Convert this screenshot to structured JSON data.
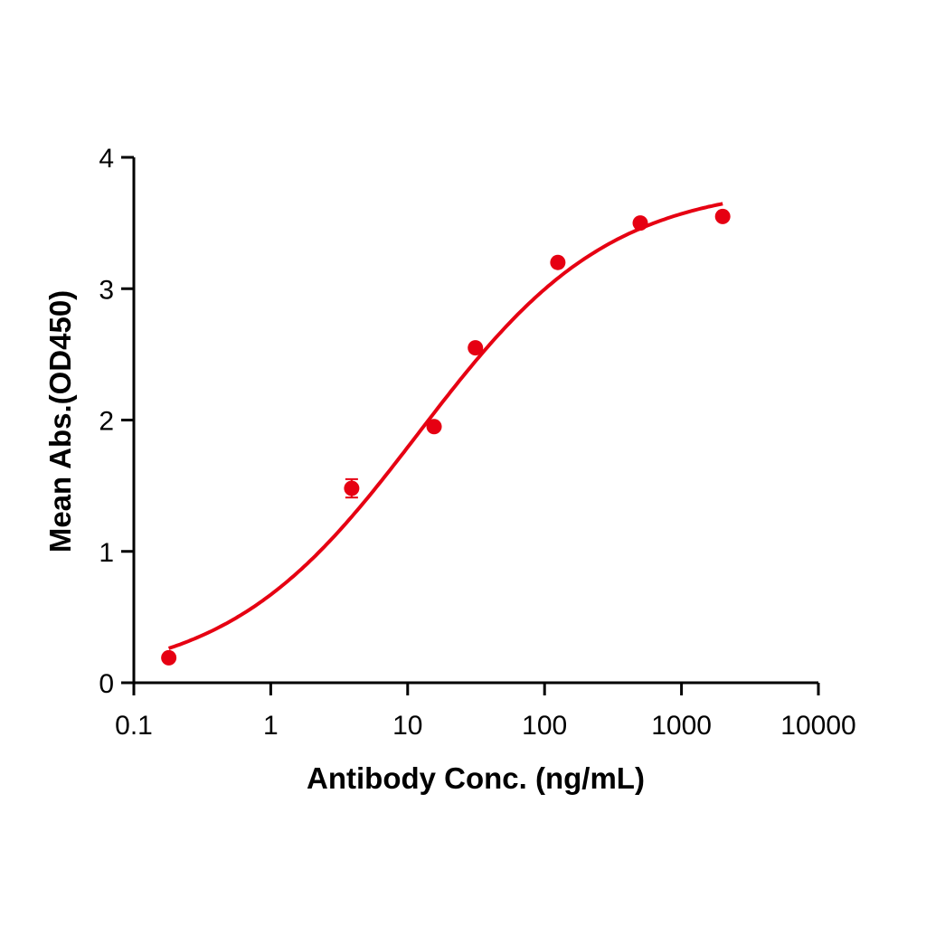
{
  "chart_data": {
    "type": "scatter",
    "title": "",
    "xlabel": "Antibody Conc. (ng/mL)",
    "ylabel": "Mean Abs.(OD450)",
    "xscale": "log",
    "xlim": [
      0.1,
      10000
    ],
    "ylim": [
      0,
      4
    ],
    "x_ticks": [
      "0.1",
      "1",
      "10",
      "100",
      "1000",
      "10000"
    ],
    "y_ticks": [
      "0",
      "1",
      "2",
      "3",
      "4"
    ],
    "grid": false,
    "legend": null,
    "color": "#e60012",
    "series": [
      {
        "name": "Mean Abs.",
        "x": [
          0.18,
          3.9,
          15.6,
          31.25,
          125,
          500,
          2000
        ],
        "y": [
          0.19,
          1.48,
          1.95,
          2.55,
          3.2,
          3.5,
          3.55
        ],
        "error": [
          0.0,
          0.07,
          0.0,
          0.0,
          0.0,
          0.0,
          0.0
        ]
      }
    ],
    "fit": {
      "type": "4PL sigmoid",
      "bottom": 0.0,
      "top": 3.8,
      "ec50": 12,
      "hill": 0.62,
      "x_range": [
        0.18,
        2000
      ]
    }
  }
}
